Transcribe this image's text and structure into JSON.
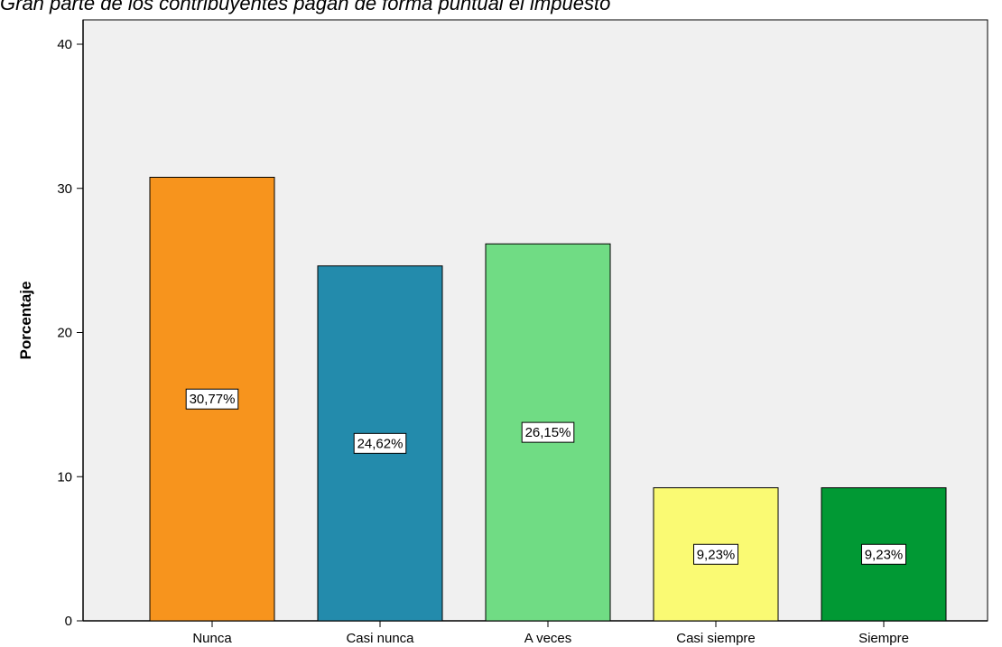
{
  "chart_data": {
    "type": "bar",
    "title": "Gran parte de los contribuyentes pagan de forma puntual el impuesto",
    "ylabel": "Porcentaje",
    "xlabel": "",
    "categories": [
      "Nunca",
      "Casi nunca",
      "A veces",
      "Casi siempre",
      "Siempre"
    ],
    "values": [
      30.77,
      24.62,
      26.15,
      9.23,
      9.23
    ],
    "data_labels": [
      "30,77%",
      "24,62%",
      "26,15%",
      "9,23%",
      "9,23%"
    ],
    "colors": [
      "#f7941d",
      "#238bac",
      "#70dc84",
      "#fafa73",
      "#019934"
    ],
    "ylim": [
      0,
      40
    ],
    "yticks": [
      0,
      10,
      20,
      30,
      40
    ],
    "plot_background": "#f0f0f0",
    "grid": false,
    "legend": "none"
  }
}
